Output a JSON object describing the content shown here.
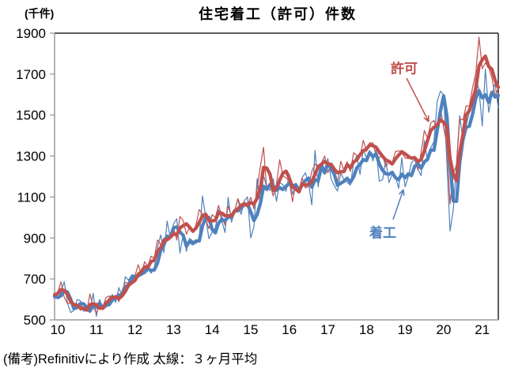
{
  "chart_data": {
    "type": "line",
    "title": "住宅着工（許可）件数",
    "unit_label": "(千件)",
    "note": "(備考)Refinitivにより作成 太線：３ヶ月平均",
    "thick_line_meaning": "３ヶ月平均",
    "x_frequency": "monthly",
    "x_tick_labels": [
      "10",
      "11",
      "12",
      "13",
      "14",
      "15",
      "16",
      "17",
      "18",
      "19",
      "20",
      "21"
    ],
    "y_ticks": [
      500,
      700,
      900,
      1100,
      1300,
      1500,
      1700,
      1900
    ],
    "ylim": [
      500,
      1900
    ],
    "legend_position": "annotations-on-chart",
    "grid": false,
    "series": [
      {
        "name": "許可",
        "color": "#C0504D",
        "values": [
          622,
          637,
          685,
          610,
          579,
          583,
          561,
          571,
          547,
          552,
          544,
          627,
          563,
          534,
          574,
          563,
          609,
          617,
          601,
          620,
          589,
          644,
          683,
          679,
          682,
          715,
          769,
          723,
          784,
          760,
          811,
          801,
          890,
          868,
          900,
          905,
          904,
          952,
          890,
          1005,
          985,
          918,
          954,
          926,
          965,
          1039,
          1017,
          991,
          945,
          1014,
          1000,
          1059,
          1005,
          963,
          1057,
          1003,
          1031,
          1092,
          1052,
          1060,
          1060,
          1098,
          1042,
          1140,
          1250,
          1343,
          1130,
          1161,
          1105,
          1161,
          1282,
          1204,
          1193,
          1177,
          1077,
          1163,
          1136,
          1193,
          1144,
          1152,
          1225,
          1260,
          1255,
          1266,
          1300,
          1219,
          1260,
          1228,
          1168,
          1275,
          1230,
          1272,
          1225,
          1316,
          1303,
          1300,
          1377,
          1323,
          1364,
          1364,
          1301,
          1292,
          1303,
          1249,
          1270,
          1265,
          1322,
          1326,
          1316,
          1291,
          1288,
          1290,
          1299,
          1232,
          1317,
          1425,
          1387,
          1461,
          1474,
          1420,
          1536,
          1438,
          1356,
          1066,
          1212,
          1258,
          1483,
          1476,
          1545,
          1544,
          1635,
          1704,
          1881,
          1726,
          1755,
          1733,
          1683,
          1594,
          1630
        ]
      },
      {
        "name": "着工",
        "color": "#4F81BD",
        "values": [
          614,
          604,
          636,
          687,
          583,
          536,
          546,
          599,
          594,
          543,
          545,
          539,
          630,
          517,
          600,
          554,
          561,
          608,
          623,
          585,
          658,
          610,
          711,
          694,
          720,
          718,
          706,
          747,
          744,
          754,
          728,
          749,
          854,
          915,
          828,
          983,
          898,
          969,
          994,
          826,
          919,
          835,
          898,
          885,
          873,
          899,
          1105,
          999,
          897,
          928,
          950,
          1039,
          984,
          927,
          1098,
          977,
          1028,
          1092,
          1015,
          1081,
          1101,
          900,
          954,
          1190,
          1063,
          1204,
          1147,
          1132,
          1189,
          1079,
          1171,
          1160,
          1128,
          1213,
          1113,
          1155,
          1128,
          1195,
          1218,
          1164,
          1062,
          1328,
          1149,
          1268,
          1236,
          1288,
          1189,
          1154,
          1129,
          1217,
          1185,
          1172,
          1158,
          1265,
          1303,
          1210,
          1334,
          1290,
          1327,
          1276,
          1329,
          1177,
          1184,
          1279,
          1170,
          1211,
          1202,
          1142,
          1291,
          1149,
          1199,
          1267,
          1283,
          1235,
          1204,
          1375,
          1274,
          1340,
          1371,
          1567,
          1617,
          1599,
          1269,
          934,
          1038,
          1265,
          1497,
          1376,
          1448,
          1514,
          1551,
          1680,
          1625,
          1447,
          1725,
          1514,
          1594,
          1657,
          1534
        ]
      }
    ]
  }
}
